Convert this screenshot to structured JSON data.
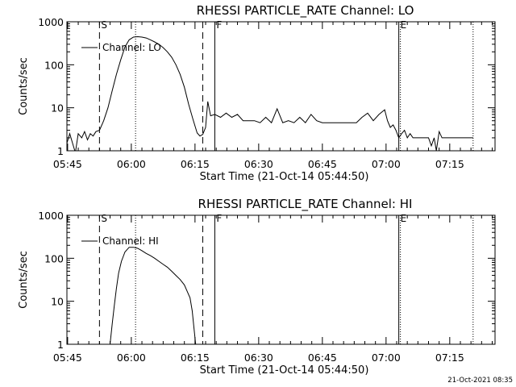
{
  "footer": {
    "date": "21-Oct-2021 08:35"
  },
  "chart_data": [
    {
      "type": "line",
      "title": "RHESSI PARTICLE_RATE Channel: LO",
      "xlabel": "Start Time (21-Oct-14 05:44:50)",
      "ylabel": "Counts/sec",
      "legend_label": "Channel: LO",
      "legend_position": "top-left",
      "y_scale": "log",
      "ylim": [
        1,
        1000
      ],
      "xlim": [
        "05:44:50",
        "07:25:40"
      ],
      "x_ticks": [
        "05:45",
        "06:00",
        "06:15",
        "06:30",
        "06:45",
        "07:00",
        "07:15"
      ],
      "y_ticks": [
        "1",
        "10",
        "100",
        "1000"
      ],
      "markers": [
        {
          "time": "05:52:30",
          "style": "dashed",
          "label": "S"
        },
        {
          "time": "06:01:00",
          "style": "dotted",
          "label": ""
        },
        {
          "time": "06:16:50",
          "style": "dashed",
          "label": ""
        },
        {
          "time": "06:19:40",
          "style": "solid",
          "label": "F"
        },
        {
          "time": "07:03:00",
          "style": "solid-dotted",
          "label": "E"
        },
        {
          "time": "07:20:30",
          "style": "dotted",
          "label": ""
        }
      ],
      "series": [
        {
          "name": "Channel: LO",
          "points": [
            [
              "05:44:50",
              1.5
            ],
            [
              "05:45:30",
              2.5
            ],
            [
              "05:46:10",
              1.5
            ],
            [
              "05:46:50",
              0.9
            ],
            [
              "05:47:30",
              2.5
            ],
            [
              "05:48:20",
              2.0
            ],
            [
              "05:49:00",
              2.8
            ],
            [
              "05:49:40",
              1.8
            ],
            [
              "05:50:20",
              2.5
            ],
            [
              "05:51:00",
              2.2
            ],
            [
              "05:51:40",
              2.8
            ],
            [
              "05:52:30",
              3.0
            ],
            [
              "05:53:30",
              5.0
            ],
            [
              "05:54:30",
              10
            ],
            [
              "05:55:30",
              25
            ],
            [
              "05:56:30",
              60
            ],
            [
              "05:57:30",
              130
            ],
            [
              "05:58:30",
              260
            ],
            [
              "05:59:30",
              380
            ],
            [
              "06:00:30",
              440
            ],
            [
              "06:01:30",
              450
            ],
            [
              "06:02:30",
              440
            ],
            [
              "06:03:30",
              420
            ],
            [
              "06:04:30",
              380
            ],
            [
              "06:05:30",
              340
            ],
            [
              "06:06:30",
              300
            ],
            [
              "06:07:30",
              250
            ],
            [
              "06:08:30",
              200
            ],
            [
              "06:09:30",
              150
            ],
            [
              "06:10:30",
              100
            ],
            [
              "06:11:30",
              60
            ],
            [
              "06:12:30",
              30
            ],
            [
              "06:13:30",
              12
            ],
            [
              "06:14:30",
              5.5
            ],
            [
              "06:15:30",
              2.6
            ],
            [
              "06:16:10",
              2.2
            ],
            [
              "06:16:50",
              2.4
            ],
            [
              "06:17:30",
              3.5
            ],
            [
              "06:18:00",
              14
            ],
            [
              "06:18:40",
              6.5
            ],
            [
              "06:19:40",
              7.0
            ],
            [
              "06:21:00",
              6.0
            ],
            [
              "06:22:20",
              7.5
            ],
            [
              "06:23:40",
              6.0
            ],
            [
              "06:25:00",
              7.0
            ],
            [
              "06:26:20",
              5.0
            ],
            [
              "06:27:40",
              5.0
            ],
            [
              "06:29:00",
              5.0
            ],
            [
              "06:30:20",
              4.5
            ],
            [
              "06:31:40",
              6.0
            ],
            [
              "06:33:00",
              4.5
            ],
            [
              "06:34:20",
              9.5
            ],
            [
              "06:35:40",
              4.5
            ],
            [
              "06:37:00",
              5.0
            ],
            [
              "06:38:20",
              4.5
            ],
            [
              "06:39:40",
              6.0
            ],
            [
              "06:41:00",
              4.5
            ],
            [
              "06:42:20",
              7.0
            ],
            [
              "06:43:40",
              5.0
            ],
            [
              "06:45:00",
              4.5
            ],
            [
              "06:46:20",
              4.5
            ],
            [
              "06:47:40",
              4.5
            ],
            [
              "06:49:00",
              4.5
            ],
            [
              "06:50:20",
              4.5
            ],
            [
              "06:51:40",
              4.5
            ],
            [
              "06:53:00",
              4.5
            ],
            [
              "06:54:20",
              6.0
            ],
            [
              "06:55:40",
              7.5
            ],
            [
              "06:57:00",
              5.0
            ],
            [
              "06:58:20",
              7.0
            ],
            [
              "06:59:40",
              9.0
            ],
            [
              "07:00:20",
              5.0
            ],
            [
              "07:01:00",
              3.5
            ],
            [
              "07:01:40",
              4.0
            ],
            [
              "07:02:20",
              3.0
            ],
            [
              "07:03:00",
              2.0
            ],
            [
              "07:03:40",
              2.5
            ],
            [
              "07:04:20",
              3.0
            ],
            [
              "07:05:00",
              2.0
            ],
            [
              "07:05:40",
              2.5
            ],
            [
              "07:06:20",
              2.0
            ],
            [
              "07:07:00",
              2.0
            ],
            [
              "07:08:00",
              2.0
            ],
            [
              "07:09:00",
              2.0
            ],
            [
              "07:10:00",
              2.0
            ],
            [
              "07:10:40",
              1.3
            ],
            [
              "07:11:20",
              2.0
            ],
            [
              "07:11:50",
              1.0
            ],
            [
              "07:12:30",
              2.8
            ],
            [
              "07:13:10",
              2.0
            ],
            [
              "07:14:00",
              2.0
            ],
            [
              "07:16:00",
              2.0
            ],
            [
              "07:18:00",
              2.0
            ],
            [
              "07:20:00",
              2.0
            ],
            [
              "07:20:30",
              2.0
            ]
          ]
        }
      ]
    },
    {
      "type": "line",
      "title": "RHESSI PARTICLE_RATE Channel: HI",
      "xlabel": "Start Time (21-Oct-14 05:44:50)",
      "ylabel": "Counts/sec",
      "legend_label": "Channel: HI",
      "legend_position": "top-left",
      "y_scale": "log",
      "ylim": [
        1,
        1000
      ],
      "xlim": [
        "05:44:50",
        "07:25:40"
      ],
      "x_ticks": [
        "05:45",
        "06:00",
        "06:15",
        "06:30",
        "06:45",
        "07:00",
        "07:15"
      ],
      "y_ticks": [
        "1",
        "10",
        "100",
        "1000"
      ],
      "markers": [
        {
          "time": "05:52:30",
          "style": "dashed",
          "label": "S"
        },
        {
          "time": "06:01:00",
          "style": "dotted",
          "label": ""
        },
        {
          "time": "06:16:50",
          "style": "dashed",
          "label": ""
        },
        {
          "time": "06:19:40",
          "style": "solid",
          "label": "F"
        },
        {
          "time": "07:03:00",
          "style": "solid-dotted",
          "label": "E"
        },
        {
          "time": "07:20:30",
          "style": "dotted",
          "label": ""
        }
      ],
      "series": [
        {
          "name": "Channel: HI",
          "points": [
            [
              "05:55:00",
              1.0
            ],
            [
              "05:55:30",
              3.0
            ],
            [
              "05:56:00",
              8.0
            ],
            [
              "05:56:30",
              20
            ],
            [
              "05:57:00",
              45
            ],
            [
              "05:57:40",
              85
            ],
            [
              "05:58:30",
              140
            ],
            [
              "05:59:30",
              180
            ],
            [
              "06:00:30",
              180
            ],
            [
              "06:01:30",
              170
            ],
            [
              "06:02:30",
              150
            ],
            [
              "06:03:30",
              130
            ],
            [
              "06:04:30",
              115
            ],
            [
              "06:05:30",
              100
            ],
            [
              "06:06:30",
              85
            ],
            [
              "06:07:30",
              72
            ],
            [
              "06:08:30",
              62
            ],
            [
              "06:09:30",
              50
            ],
            [
              "06:10:30",
              40
            ],
            [
              "06:11:30",
              32
            ],
            [
              "06:12:30",
              24
            ],
            [
              "06:13:10",
              17
            ],
            [
              "06:13:50",
              12
            ],
            [
              "06:14:20",
              6.0
            ],
            [
              "06:14:50",
              2.0
            ],
            [
              "06:15:10",
              1.0
            ]
          ]
        }
      ]
    }
  ]
}
